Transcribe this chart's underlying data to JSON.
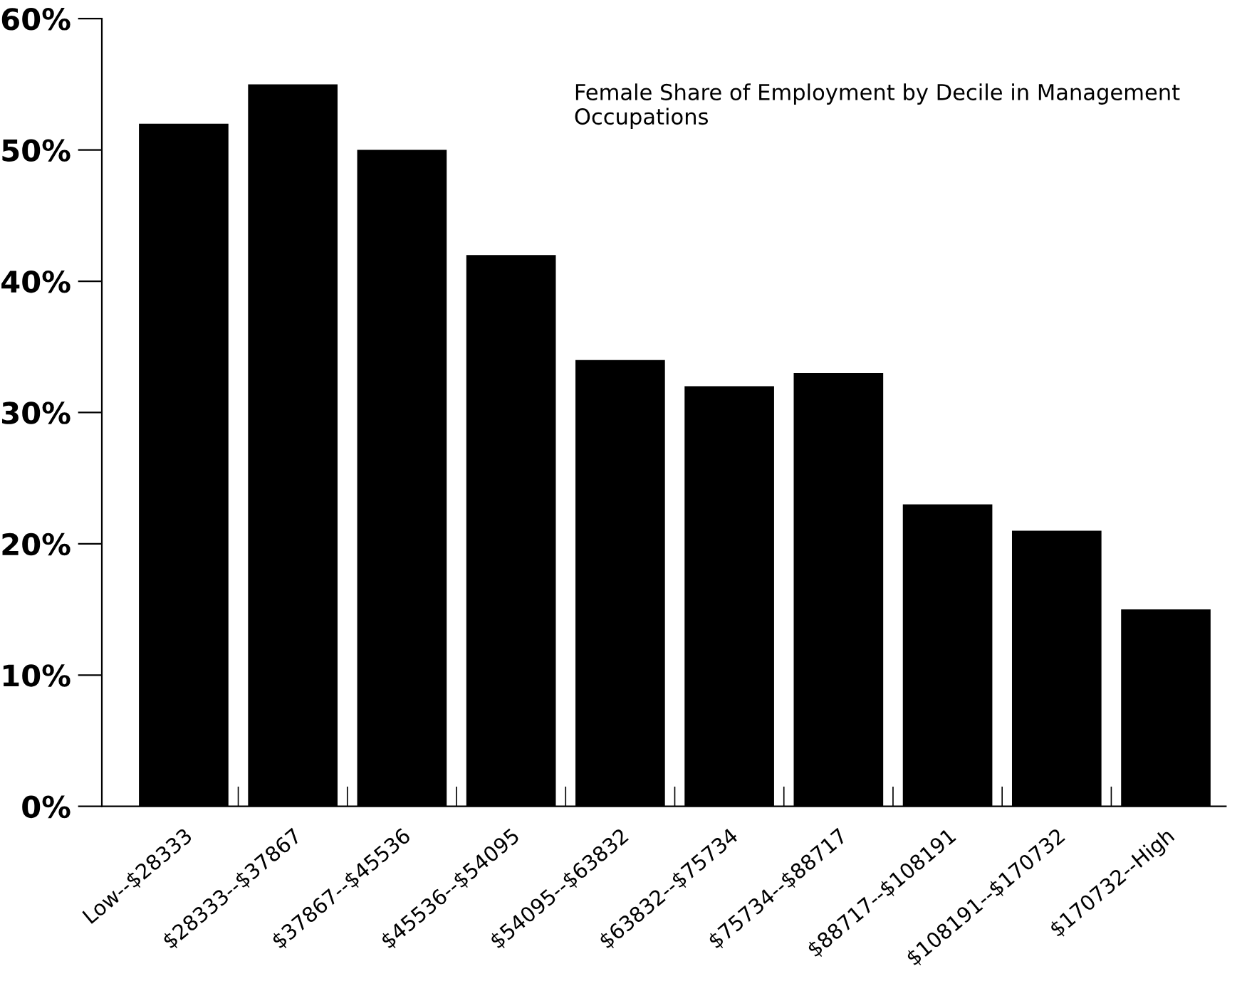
{
  "chart_data": {
    "type": "bar",
    "title": "Female Share of Employment by Decile in Management Occupations",
    "categories": [
      "Low--$28333",
      "$28333--$37867",
      "$37867--$45536",
      "$45536--$54095",
      "$54095--$63832",
      "$63832--$75734",
      "$75734--$88717",
      "$88717--$108191",
      "$108191--$170732",
      "$170732--High"
    ],
    "values": [
      52,
      55,
      50,
      42,
      34,
      32,
      33,
      23,
      21,
      15
    ],
    "color": "#000000",
    "ylim": [
      0,
      60
    ],
    "yticks": [
      {
        "value": 0,
        "label": "0%"
      },
      {
        "value": 10,
        "label": "10%"
      },
      {
        "value": 20,
        "label": "20%"
      },
      {
        "value": 30,
        "label": "30%"
      },
      {
        "value": 40,
        "label": "40%"
      },
      {
        "value": 50,
        "label": "50%"
      },
      {
        "value": 60,
        "label": "60%"
      }
    ],
    "grid": false,
    "legend": false
  }
}
